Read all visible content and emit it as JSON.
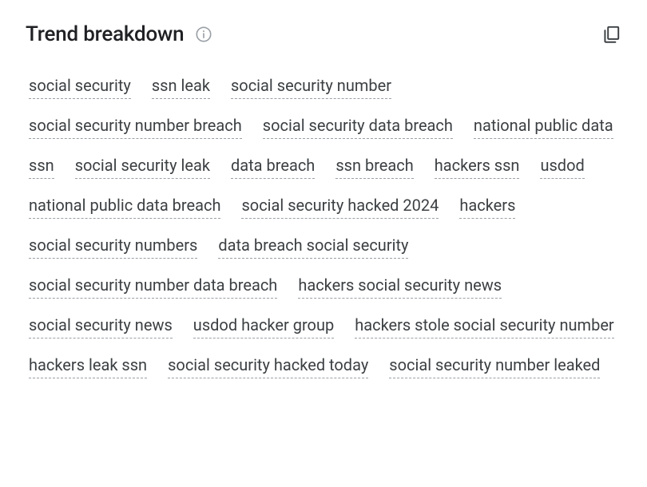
{
  "header": {
    "title": "Trend breakdown"
  },
  "tags": [
    "social security",
    "ssn leak",
    "social security number",
    "social security number breach",
    "social security data breach",
    "national public data",
    "ssn",
    "social security leak",
    "data breach",
    "ssn breach",
    "hackers ssn",
    "usdod",
    "national public data breach",
    "social security hacked 2024",
    "hackers",
    "social security numbers",
    "data breach social security",
    "social security number data breach",
    "hackers social security news",
    "social security news",
    "usdod hacker group",
    "hackers stole social security number",
    "hackers leak ssn",
    "social security hacked today",
    "social security number leaked"
  ],
  "colors": {
    "text_primary": "#202124",
    "text_secondary": "#3c4043",
    "border_dashed": "#9aa0a6",
    "icon_muted": "#9aa0a6",
    "icon_dark": "#3c4043",
    "background": "#ffffff"
  }
}
